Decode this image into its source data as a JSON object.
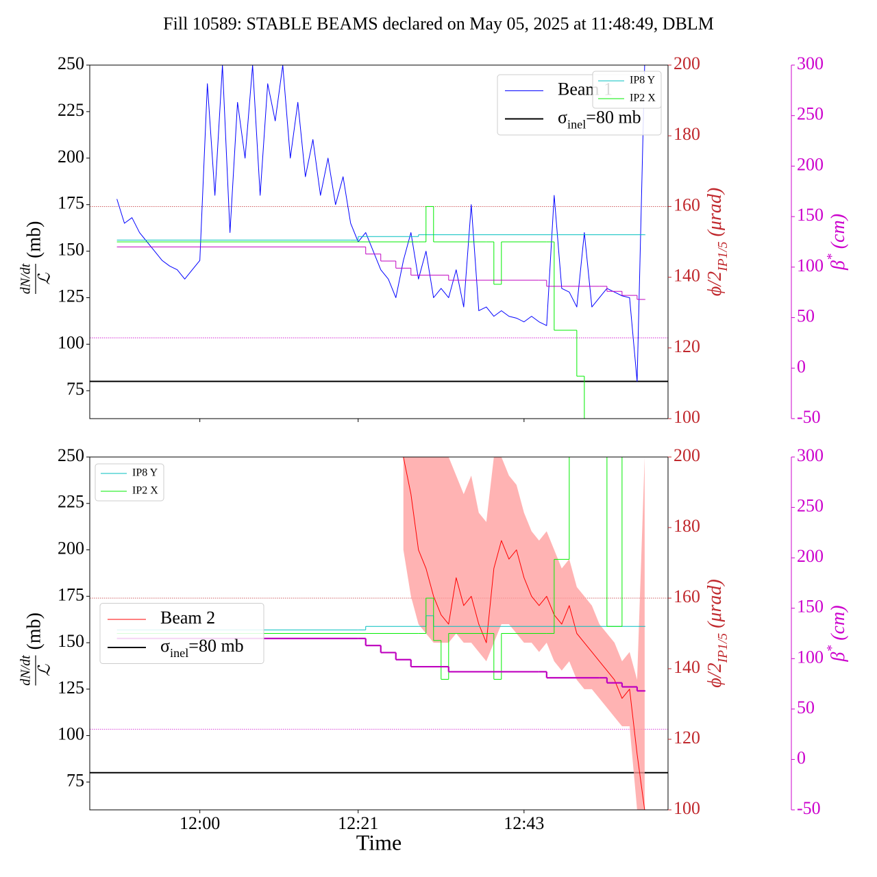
{
  "chart_data": [
    {
      "type": "line",
      "title": "Fill 10589: STABLE BEAMS declared on May 05, 2025 at 11:48:49, DBLM",
      "ylabel": {
        "numerator": "dN/dt",
        "denominator": "ℒ",
        "unit": "(mb)"
      },
      "y2label": [
        {
          "text": "ϕ/2"
        },
        {
          "text": "IP1/5",
          "sub": true
        },
        {
          "text": " (μrad)"
        }
      ],
      "y3label": [
        {
          "text": "β"
        },
        {
          "text": "*",
          "sup": true
        },
        {
          "text": " (cm)"
        }
      ],
      "xlim": [
        "11:45:24",
        "13:02:06"
      ],
      "ylim": [
        60,
        250
      ],
      "yticks": [
        75,
        100,
        125,
        150,
        175,
        200,
        225,
        250
      ],
      "y2lim": [
        100,
        200
      ],
      "y2ticks": [
        100,
        120,
        140,
        160,
        180,
        200
      ],
      "y2color": "#c0282d",
      "y3lim": [
        -50,
        300
      ],
      "y3ticks": [
        -50,
        0,
        50,
        100,
        150,
        200,
        250,
        300
      ],
      "y3color": "#cc00cc",
      "legend_main": "upper right",
      "legend_secondary": "upper right",
      "series": [
        {
          "name": "Beam 1",
          "color": "#0000ff",
          "axis": "y",
          "legend": "main",
          "linewidth": 1,
          "x": [
            "11:49",
            "11:50",
            "11:51",
            "11:52",
            "11:53",
            "11:54",
            "11:55",
            "11:56",
            "11:57",
            "11:58",
            "11:59",
            "12:00",
            "12:01",
            "12:02",
            "12:03",
            "12:04",
            "12:05",
            "12:06",
            "12:07",
            "12:08",
            "12:09",
            "12:10",
            "12:11",
            "12:12",
            "12:13",
            "12:14",
            "12:15",
            "12:16",
            "12:17",
            "12:18",
            "12:19",
            "12:20",
            "12:21",
            "12:22",
            "12:23",
            "12:24",
            "12:25",
            "12:26",
            "12:27",
            "12:28",
            "12:29",
            "12:30",
            "12:31",
            "12:32",
            "12:33",
            "12:34",
            "12:35",
            "12:36",
            "12:37",
            "12:38",
            "12:39",
            "12:40",
            "12:41",
            "12:42",
            "12:43",
            "12:44",
            "12:45",
            "12:46",
            "12:47",
            "12:48",
            "12:49",
            "12:50",
            "12:51",
            "12:52",
            "12:53",
            "12:54",
            "12:55",
            "12:56",
            "12:57",
            "12:58",
            "12:59"
          ],
          "values": [
            178,
            165,
            168,
            160,
            155,
            150,
            145,
            142,
            140,
            135,
            140,
            145,
            240,
            180,
            250,
            160,
            230,
            200,
            250,
            180,
            240,
            220,
            250,
            200,
            230,
            190,
            210,
            180,
            200,
            175,
            190,
            165,
            155,
            160,
            150,
            140,
            135,
            125,
            145,
            160,
            135,
            150,
            125,
            130,
            125,
            140,
            120,
            175,
            118,
            120,
            115,
            118,
            115,
            114,
            112,
            115,
            112,
            110,
            180,
            130,
            128,
            120,
            160,
            120,
            125,
            130,
            128,
            126,
            125,
            80,
            250
          ]
        },
        {
          "name": "IP8 Y",
          "color": "#00bfbf",
          "axis": "y2",
          "legend": "secondary",
          "step": true,
          "linewidth": 1,
          "x": [
            "11:49",
            "12:20",
            "12:21",
            "12:29",
            "12:59"
          ],
          "values": [
            150.5,
            150.5,
            151.5,
            152,
            152
          ]
        },
        {
          "name": "IP2 X",
          "color": "#00ee00",
          "axis": "y2",
          "legend": "secondary",
          "step": true,
          "linewidth": 1,
          "x": [
            "11:49",
            "12:29",
            "12:30",
            "12:31",
            "12:38",
            "12:39",
            "12:40",
            "12:46",
            "12:47",
            "12:50",
            "12:51",
            "12:59"
          ],
          "values": [
            150,
            150,
            160,
            150,
            150,
            138,
            150,
            150,
            125,
            112,
            100,
            100
          ]
        },
        {
          "color": "#bf00bf",
          "axis": "y3",
          "step": true,
          "linewidth": 1,
          "x": [
            "11:49",
            "12:21",
            "12:22",
            "12:24",
            "12:26",
            "12:28",
            "12:33",
            "12:45",
            "12:46",
            "12:53",
            "12:54",
            "12:56",
            "12:58",
            "12:59"
          ],
          "values": [
            120,
            120,
            113,
            106,
            99,
            92,
            87,
            87,
            81,
            81,
            76,
            72,
            68,
            68
          ]
        }
      ],
      "reference_lines": [
        {
          "name_parts": [
            {
              "text": "σ"
            },
            {
              "text": "inel",
              "sub": true
            },
            {
              "text": "=80 mb"
            }
          ],
          "value": 80,
          "axis": "y",
          "color": "#000000",
          "legend": "main",
          "linewidth": 2
        },
        {
          "value": 160,
          "axis": "y2",
          "color": "#c0282d",
          "dash": true,
          "linewidth": 0.8
        },
        {
          "value": 30,
          "axis": "y3",
          "color": "#cc00cc",
          "dash": true,
          "linewidth": 0.8
        }
      ]
    },
    {
      "type": "line",
      "ylabel": {
        "numerator": "dN/dt",
        "denominator": "ℒ",
        "unit": "(mb)"
      },
      "y2label": [
        {
          "text": "ϕ/2"
        },
        {
          "text": "IP1/5",
          "sub": true
        },
        {
          "text": " (μrad)"
        }
      ],
      "y3label": [
        {
          "text": "β"
        },
        {
          "text": "*",
          "sup": true
        },
        {
          "text": " (cm)"
        }
      ],
      "xlabel": "Time",
      "xlim": [
        "11:45:24",
        "13:02:06"
      ],
      "xticks": [
        "12:00",
        "12:21",
        "12:43"
      ],
      "ylim": [
        60,
        250
      ],
      "yticks": [
        75,
        100,
        125,
        150,
        175,
        200,
        225,
        250
      ],
      "y2lim": [
        100,
        200
      ],
      "y2ticks": [
        100,
        120,
        140,
        160,
        180,
        200
      ],
      "y2color": "#c0282d",
      "y3lim": [
        -50,
        300
      ],
      "y3ticks": [
        -50,
        0,
        50,
        100,
        150,
        200,
        250,
        300
      ],
      "y3color": "#cc00cc",
      "legend_main": "center left",
      "legend_secondary": "upper left",
      "series": [
        {
          "name": "Beam 2",
          "color": "#ff0000",
          "axis": "y",
          "legend": "main",
          "linewidth": 1,
          "band_color": "#ff9999",
          "x": [
            "12:27",
            "12:28",
            "12:29",
            "12:30",
            "12:31",
            "12:32",
            "12:33",
            "12:34",
            "12:35",
            "12:36",
            "12:37",
            "12:38",
            "12:39",
            "12:40",
            "12:41",
            "12:42",
            "12:43",
            "12:44",
            "12:45",
            "12:46",
            "12:47",
            "12:48",
            "12:49",
            "12:50",
            "12:51",
            "12:52",
            "12:53",
            "12:54",
            "12:55",
            "12:56",
            "12:57",
            "12:58",
            "12:59"
          ],
          "values": [
            250,
            230,
            200,
            190,
            175,
            165,
            160,
            185,
            170,
            175,
            160,
            150,
            190,
            205,
            195,
            200,
            185,
            175,
            170,
            175,
            165,
            160,
            170,
            155,
            150,
            145,
            140,
            135,
            130,
            120,
            125,
            90,
            60
          ],
          "lower": [
            200,
            175,
            160,
            155,
            150,
            150,
            150,
            155,
            150,
            150,
            145,
            140,
            150,
            160,
            160,
            155,
            150,
            150,
            145,
            150,
            140,
            135,
            140,
            130,
            125,
            125,
            120,
            115,
            110,
            105,
            105,
            60,
            60
          ],
          "upper": [
            300,
            300,
            280,
            260,
            250,
            250,
            250,
            240,
            230,
            240,
            220,
            215,
            250,
            250,
            240,
            235,
            220,
            210,
            205,
            210,
            200,
            190,
            195,
            180,
            175,
            170,
            160,
            155,
            150,
            140,
            145,
            130,
            250
          ]
        },
        {
          "name": "IP8 Y",
          "color": "#00bfbf",
          "axis": "y2",
          "legend": "secondary",
          "step": true,
          "linewidth": 1,
          "x": [
            "11:49",
            "12:21",
            "12:22",
            "12:29",
            "12:30",
            "12:31",
            "12:59"
          ],
          "values": [
            151,
            151,
            152,
            152,
            155,
            152,
            152
          ]
        },
        {
          "name": "IP2 X",
          "color": "#00ee00",
          "axis": "y2",
          "legend": "secondary",
          "step": true,
          "linewidth": 1,
          "x": [
            "11:49",
            "12:29",
            "12:30",
            "12:31",
            "12:32",
            "12:33",
            "12:38",
            "12:39",
            "12:40",
            "12:46",
            "12:47",
            "12:49",
            "12:53",
            "12:54",
            "12:56",
            "12:59"
          ],
          "values": [
            150,
            150,
            160,
            148,
            137,
            150,
            150,
            137,
            150,
            150,
            171,
            200,
            200,
            152,
            200,
            200
          ]
        },
        {
          "color": "#bf00bf",
          "axis": "y3",
          "step": true,
          "linewidth": 2.2,
          "x": [
            "11:49",
            "12:21",
            "12:22",
            "12:24",
            "12:26",
            "12:28",
            "12:33",
            "12:45",
            "12:46",
            "12:53",
            "12:54",
            "12:56",
            "12:58",
            "12:59"
          ],
          "values": [
            120,
            120,
            113,
            106,
            99,
            92,
            87,
            87,
            81,
            81,
            76,
            72,
            68,
            68
          ]
        }
      ],
      "reference_lines": [
        {
          "name_parts": [
            {
              "text": "σ"
            },
            {
              "text": "inel",
              "sub": true
            },
            {
              "text": "=80 mb"
            }
          ],
          "value": 80,
          "axis": "y",
          "color": "#000000",
          "legend": "main",
          "linewidth": 2
        },
        {
          "value": 160,
          "axis": "y2",
          "color": "#c0282d",
          "dash": true,
          "linewidth": 0.8
        },
        {
          "value": 30,
          "axis": "y3",
          "color": "#cc00cc",
          "dash": true,
          "linewidth": 0.8
        }
      ]
    }
  ]
}
